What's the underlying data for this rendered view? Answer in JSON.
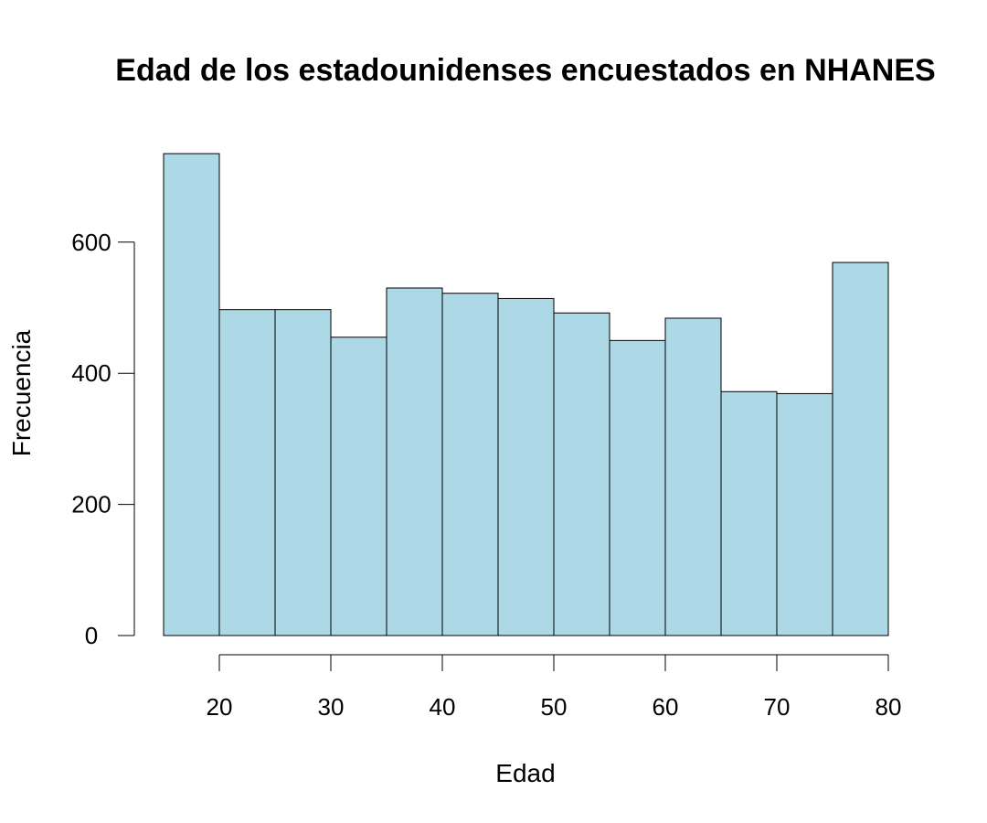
{
  "chart_data": {
    "type": "bar",
    "title": "Edad de los estadounidenses encuestados en NHANES",
    "xlabel": "Edad",
    "ylabel": "Frecuencia",
    "bins": [
      {
        "x0": 15,
        "x1": 20,
        "count": 735
      },
      {
        "x0": 20,
        "x1": 25,
        "count": 497
      },
      {
        "x0": 25,
        "x1": 30,
        "count": 497
      },
      {
        "x0": 30,
        "x1": 35,
        "count": 455
      },
      {
        "x0": 35,
        "x1": 40,
        "count": 530
      },
      {
        "x0": 40,
        "x1": 45,
        "count": 522
      },
      {
        "x0": 45,
        "x1": 50,
        "count": 514
      },
      {
        "x0": 50,
        "x1": 55,
        "count": 492
      },
      {
        "x0": 55,
        "x1": 60,
        "count": 450
      },
      {
        "x0": 60,
        "x1": 65,
        "count": 484
      },
      {
        "x0": 65,
        "x1": 70,
        "count": 372
      },
      {
        "x0": 70,
        "x1": 75,
        "count": 369
      },
      {
        "x0": 75,
        "x1": 80,
        "count": 569
      }
    ],
    "x_ticks": [
      20,
      30,
      40,
      50,
      60,
      70,
      80
    ],
    "y_ticks": [
      0,
      200,
      400,
      600
    ],
    "xlim": [
      15,
      80
    ],
    "ylim": [
      0,
      735
    ],
    "bar_color": "#ADD8E6",
    "grid": false,
    "legend": "none"
  }
}
